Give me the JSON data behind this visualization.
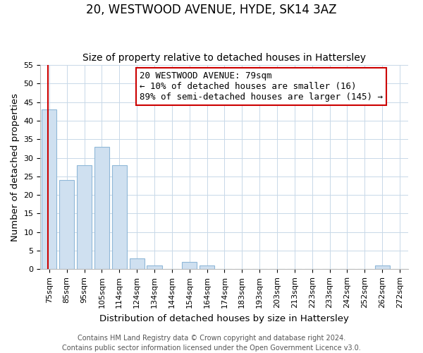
{
  "title": "20, WESTWOOD AVENUE, HYDE, SK14 3AZ",
  "subtitle": "Size of property relative to detached houses in Hattersley",
  "xlabel": "Distribution of detached houses by size in Hattersley",
  "ylabel": "Number of detached properties",
  "bar_labels": [
    "75sqm",
    "85sqm",
    "95sqm",
    "105sqm",
    "114sqm",
    "124sqm",
    "134sqm",
    "144sqm",
    "154sqm",
    "164sqm",
    "174sqm",
    "183sqm",
    "193sqm",
    "203sqm",
    "213sqm",
    "223sqm",
    "233sqm",
    "242sqm",
    "252sqm",
    "262sqm",
    "272sqm"
  ],
  "bar_values": [
    43,
    24,
    28,
    33,
    28,
    3,
    1,
    0,
    2,
    1,
    0,
    0,
    0,
    0,
    0,
    0,
    0,
    0,
    0,
    1,
    0
  ],
  "bar_color": "#cfe0f0",
  "bar_edge_color": "#90b8d8",
  "annotation_line1": "20 WESTWOOD AVENUE: 79sqm",
  "annotation_line2": "← 10% of detached houses are smaller (16)",
  "annotation_line3": "89% of semi-detached houses are larger (145) →",
  "annotation_box_edge_color": "#cc0000",
  "annotation_box_face_color": "#ffffff",
  "vertical_line_color": "#cc0000",
  "vertical_line_x": -0.07,
  "ylim": [
    0,
    55
  ],
  "yticks": [
    0,
    5,
    10,
    15,
    20,
    25,
    30,
    35,
    40,
    45,
    50,
    55
  ],
  "footer_line1": "Contains HM Land Registry data © Crown copyright and database right 2024.",
  "footer_line2": "Contains public sector information licensed under the Open Government Licence v3.0.",
  "bg_color": "#ffffff",
  "grid_color": "#c8d8e8",
  "title_fontsize": 12,
  "subtitle_fontsize": 10,
  "axis_label_fontsize": 9.5,
  "tick_fontsize": 8,
  "footer_fontsize": 7,
  "annotation_fontsize": 9
}
